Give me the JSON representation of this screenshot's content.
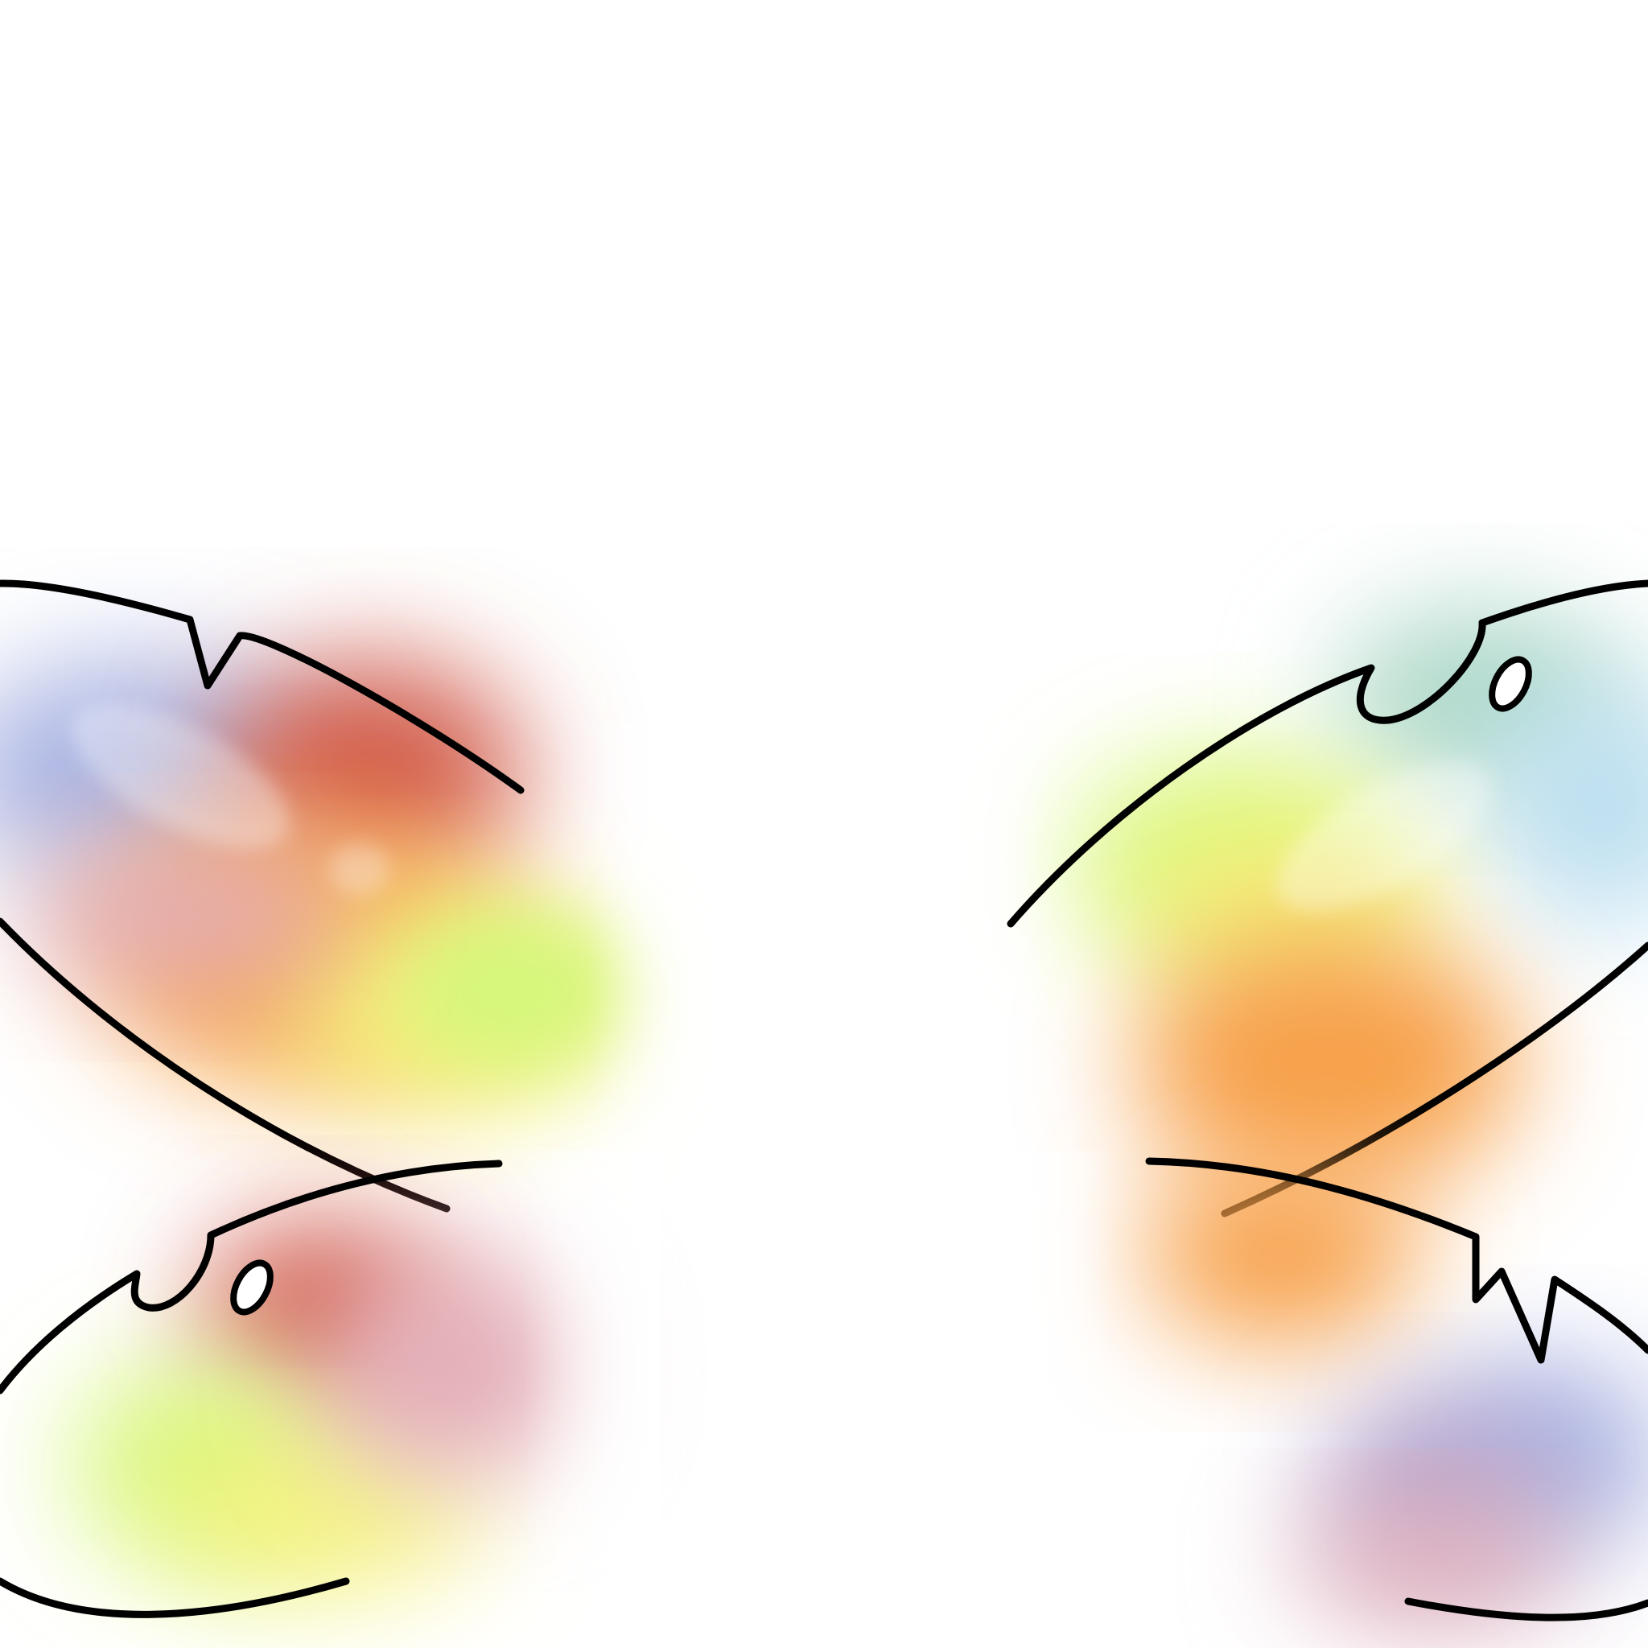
{
  "artwork": {
    "subject": "butterfly-wings",
    "colors": {
      "background": "#ffffff",
      "outline": "#000000",
      "blue": "#a9b3e2",
      "violet": "#b5a0c9",
      "red": "#d0584a",
      "orange": "#f7a04a",
      "yellow": "#f6f27c",
      "lime": "#d6f77b",
      "teal": "#a9d6c5",
      "sky": "#bcdff0",
      "pink": "#e3aeb8",
      "highlight": "#ffffff"
    }
  }
}
